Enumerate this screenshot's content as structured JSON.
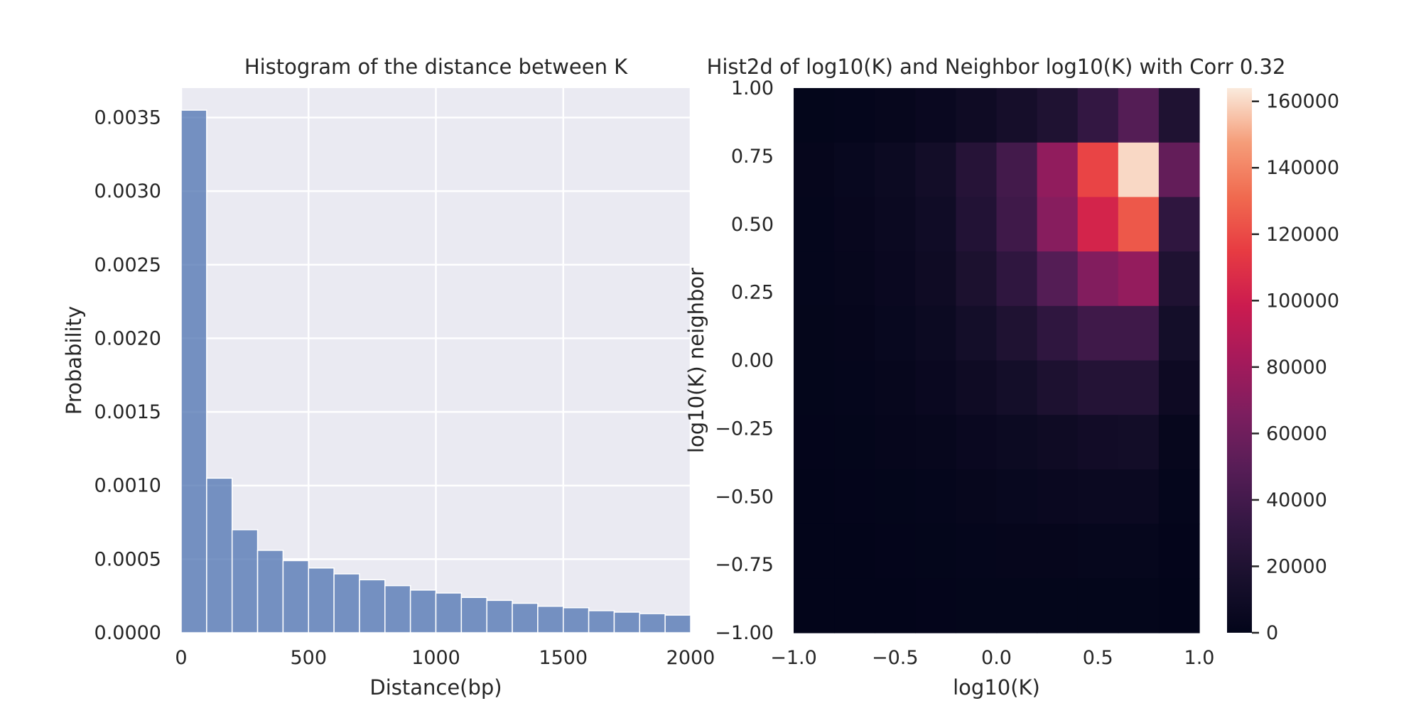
{
  "chart_data": [
    {
      "type": "bar",
      "title": "Histogram of the distance between K",
      "xlabel": "Distance(bp)",
      "ylabel": "Probability",
      "xlim": [
        0,
        2000
      ],
      "ylim": [
        0,
        0.0037
      ],
      "grid": true,
      "bar_color": "#4c72b0",
      "background_color": "#eaeaf2",
      "bin_width": 100,
      "bin_starts": [
        0,
        100,
        200,
        300,
        400,
        500,
        600,
        700,
        800,
        900,
        1000,
        1100,
        1200,
        1300,
        1400,
        1500,
        1600,
        1700,
        1800,
        1900
      ],
      "values": [
        0.00355,
        0.00105,
        0.0007,
        0.00056,
        0.00049,
        0.00044,
        0.0004,
        0.00036,
        0.00032,
        0.00029,
        0.00027,
        0.00024,
        0.00022,
        0.0002,
        0.00018,
        0.00017,
        0.00015,
        0.00014,
        0.00013,
        0.00012
      ],
      "xticks": [
        0,
        500,
        1000,
        1500,
        2000
      ],
      "xtick_labels": [
        "0",
        "500",
        "1000",
        "1500",
        "2000"
      ],
      "yticks": [
        0,
        0.0005,
        0.001,
        0.0015,
        0.002,
        0.0025,
        0.003,
        0.0035
      ],
      "ytick_labels": [
        "0.0000",
        "0.0005",
        "0.0010",
        "0.0015",
        "0.0020",
        "0.0025",
        "0.0030",
        "0.0035"
      ]
    },
    {
      "type": "heatmap",
      "title": "Hist2d of log10(K) and Neighbor log10(K) with Corr 0.32",
      "xlabel": "log10(K)",
      "ylabel": "log10(K) neighbor",
      "xlim": [
        -1.0,
        1.0
      ],
      "ylim": [
        -1.0,
        1.0
      ],
      "x_edges": [
        -1.0,
        -0.8,
        -0.6,
        -0.4,
        -0.2,
        0.0,
        0.2,
        0.4,
        0.6,
        0.8,
        1.0
      ],
      "y_edges": [
        -1.0,
        -0.8,
        -0.6,
        -0.4,
        -0.2,
        0.0,
        0.2,
        0.4,
        0.6,
        0.8,
        1.0
      ],
      "values_rows_top_to_bottom": [
        [
          1000,
          1500,
          3000,
          5000,
          9000,
          14000,
          20000,
          32000,
          48000,
          20000
        ],
        [
          2000,
          4000,
          7000,
          12000,
          24000,
          40000,
          74000,
          118000,
          160000,
          55000
        ],
        [
          1800,
          3500,
          6000,
          10000,
          22000,
          38000,
          70000,
          103000,
          125000,
          30000
        ],
        [
          1500,
          3000,
          5000,
          9000,
          18000,
          30000,
          48000,
          68000,
          75000,
          20000
        ],
        [
          1200,
          2000,
          4000,
          7000,
          13000,
          20000,
          30000,
          38000,
          38000,
          13000
        ],
        [
          1000,
          1500,
          3000,
          5000,
          9000,
          13000,
          19000,
          23000,
          23000,
          8000
        ],
        [
          500,
          1000,
          2000,
          3000,
          5000,
          7000,
          9000,
          11000,
          12000,
          3000
        ],
        [
          300,
          500,
          1000,
          1500,
          3000,
          4000,
          5000,
          6000,
          6000,
          1500
        ],
        [
          200,
          300,
          500,
          800,
          1500,
          2000,
          2000,
          2500,
          2500,
          500
        ],
        [
          100,
          200,
          300,
          500,
          800,
          1000,
          1000,
          1000,
          1000,
          300
        ]
      ],
      "vmin": 0,
      "vmax": 164000,
      "colormap": "rocket",
      "xticks": [
        -1.0,
        -0.5,
        0.0,
        0.5,
        1.0
      ],
      "xtick_labels": [
        "−1.0",
        "−0.5",
        "0.0",
        "0.5",
        "1.0"
      ],
      "yticks": [
        -1.0,
        -0.75,
        -0.5,
        -0.25,
        0.0,
        0.25,
        0.5,
        0.75,
        1.0
      ],
      "ytick_labels": [
        "−1.00",
        "−0.75",
        "−0.50",
        "−0.25",
        "0.00",
        "0.25",
        "0.50",
        "0.75",
        "1.00"
      ],
      "colorbar_ticks": [
        0,
        20000,
        40000,
        60000,
        80000,
        100000,
        120000,
        140000,
        160000
      ],
      "colorbar_tick_labels": [
        "0",
        "20000",
        "40000",
        "60000",
        "80000",
        "100000",
        "120000",
        "140000",
        "160000"
      ]
    }
  ]
}
